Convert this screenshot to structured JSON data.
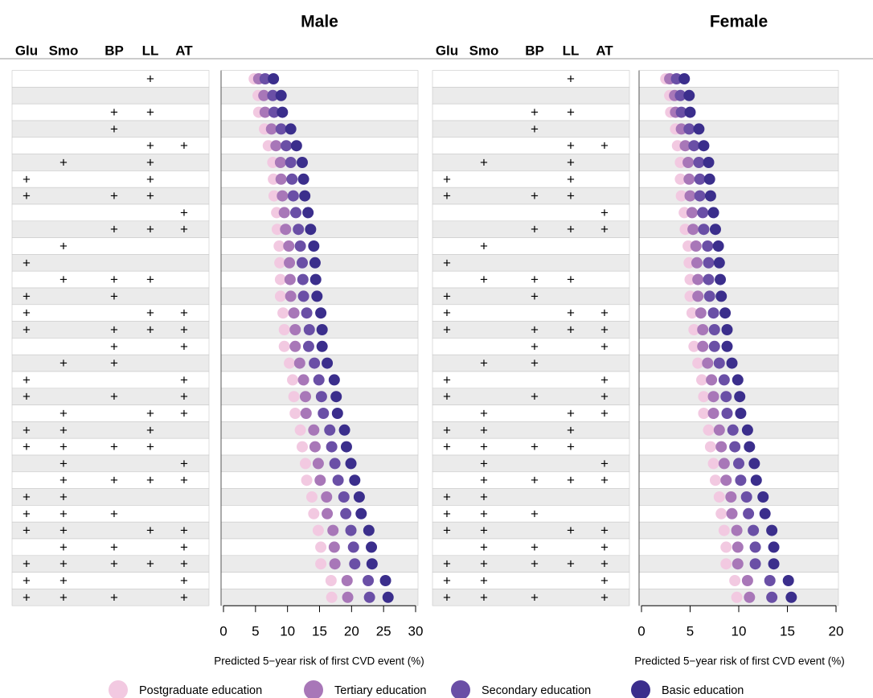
{
  "chart_data": [
    {
      "type": "dot",
      "title": "Male",
      "x_label": "Predicted 5−year risk of first CVD event (%)",
      "factor_columns": [
        "Glu",
        "Smo",
        "BP",
        "LL",
        "AT"
      ],
      "factors": [
        [
          null,
          null,
          null,
          "+",
          null
        ],
        [
          null,
          null,
          null,
          null,
          null
        ],
        [
          null,
          null,
          "+",
          "+",
          null
        ],
        [
          null,
          null,
          "+",
          null,
          null
        ],
        [
          null,
          null,
          null,
          "+",
          "+"
        ],
        [
          null,
          "+",
          null,
          "+",
          null
        ],
        [
          "+",
          null,
          null,
          "+",
          null
        ],
        [
          "+",
          null,
          "+",
          "+",
          null
        ],
        [
          null,
          null,
          null,
          null,
          "+"
        ],
        [
          null,
          null,
          "+",
          "+",
          "+"
        ],
        [
          null,
          "+",
          null,
          null,
          null
        ],
        [
          "+",
          null,
          null,
          null,
          null
        ],
        [
          null,
          "+",
          "+",
          "+",
          null
        ],
        [
          "+",
          null,
          "+",
          null,
          null
        ],
        [
          "+",
          null,
          null,
          "+",
          "+"
        ],
        [
          "+",
          null,
          "+",
          "+",
          "+"
        ],
        [
          null,
          null,
          "+",
          null,
          "+"
        ],
        [
          null,
          "+",
          "+",
          null,
          null
        ],
        [
          "+",
          null,
          null,
          null,
          "+"
        ],
        [
          "+",
          null,
          "+",
          null,
          "+"
        ],
        [
          null,
          "+",
          null,
          "+",
          "+"
        ],
        [
          "+",
          "+",
          null,
          "+",
          null
        ],
        [
          "+",
          "+",
          "+",
          "+",
          null
        ],
        [
          null,
          "+",
          null,
          null,
          "+"
        ],
        [
          null,
          "+",
          "+",
          "+",
          "+"
        ],
        [
          "+",
          "+",
          null,
          null,
          null
        ],
        [
          "+",
          "+",
          "+",
          null,
          null
        ],
        [
          "+",
          "+",
          null,
          "+",
          "+"
        ],
        [
          null,
          "+",
          "+",
          null,
          "+"
        ],
        [
          "+",
          "+",
          "+",
          "+",
          "+"
        ],
        [
          "+",
          "+",
          null,
          null,
          "+"
        ],
        [
          "+",
          "+",
          "+",
          null,
          "+"
        ]
      ],
      "series": [
        {
          "name": "Postgraduate education",
          "color": "#f2c9e1",
          "values": [
            4.8,
            5.4,
            5.5,
            6.4,
            7.0,
            7.7,
            7.8,
            7.9,
            8.3,
            8.4,
            8.7,
            8.8,
            8.9,
            8.9,
            9.3,
            9.5,
            9.5,
            10.3,
            10.8,
            11.0,
            11.2,
            12.0,
            12.3,
            12.8,
            13.0,
            13.8,
            14.1,
            14.8,
            15.2,
            15.2,
            16.8,
            16.9
          ]
        },
        {
          "name": "Tertiary education",
          "color": "#a877b8",
          "values": [
            5.5,
            6.3,
            6.5,
            7.5,
            8.2,
            8.9,
            9.0,
            9.2,
            9.5,
            9.7,
            10.2,
            10.3,
            10.4,
            10.5,
            11.0,
            11.2,
            11.2,
            11.9,
            12.5,
            12.8,
            12.9,
            14.1,
            14.3,
            14.8,
            15.1,
            16.1,
            16.2,
            17.1,
            17.3,
            17.4,
            19.3,
            19.4
          ]
        },
        {
          "name": "Secondary education",
          "color": "#6a4fa6",
          "values": [
            6.5,
            7.7,
            7.9,
            9.0,
            9.8,
            10.5,
            10.7,
            10.9,
            11.3,
            11.7,
            12.0,
            12.3,
            12.4,
            12.5,
            13.0,
            13.4,
            13.3,
            14.2,
            14.9,
            15.3,
            15.6,
            16.6,
            16.9,
            17.4,
            17.9,
            18.8,
            19.1,
            19.9,
            20.3,
            20.5,
            22.6,
            22.8
          ]
        },
        {
          "name": "Basic education",
          "color": "#3b2e8c",
          "values": [
            7.8,
            9.0,
            9.2,
            10.5,
            11.4,
            12.3,
            12.5,
            12.7,
            13.2,
            13.6,
            14.1,
            14.3,
            14.4,
            14.6,
            15.2,
            15.4,
            15.4,
            16.2,
            17.3,
            17.6,
            17.8,
            18.9,
            19.2,
            19.9,
            20.5,
            21.2,
            21.5,
            22.7,
            23.1,
            23.2,
            25.3,
            25.7
          ]
        }
      ],
      "xlim": [
        0,
        30
      ],
      "xticks": [
        0,
        5,
        10,
        15,
        20,
        25,
        30
      ]
    },
    {
      "type": "dot",
      "title": "Female",
      "x_label": "Predicted 5−year risk of first CVD event (%)",
      "factor_columns": [
        "Glu",
        "Smo",
        "BP",
        "LL",
        "AT"
      ],
      "factors": [
        [
          null,
          null,
          null,
          "+",
          null
        ],
        [
          null,
          null,
          null,
          null,
          null
        ],
        [
          null,
          null,
          "+",
          "+",
          null
        ],
        [
          null,
          null,
          "+",
          null,
          null
        ],
        [
          null,
          null,
          null,
          "+",
          "+"
        ],
        [
          null,
          "+",
          null,
          "+",
          null
        ],
        [
          "+",
          null,
          null,
          "+",
          null
        ],
        [
          "+",
          null,
          "+",
          "+",
          null
        ],
        [
          null,
          null,
          null,
          null,
          "+"
        ],
        [
          null,
          null,
          "+",
          "+",
          "+"
        ],
        [
          null,
          "+",
          null,
          null,
          null
        ],
        [
          "+",
          null,
          null,
          null,
          null
        ],
        [
          null,
          "+",
          "+",
          "+",
          null
        ],
        [
          "+",
          null,
          "+",
          null,
          null
        ],
        [
          "+",
          null,
          null,
          "+",
          "+"
        ],
        [
          "+",
          null,
          "+",
          "+",
          "+"
        ],
        [
          null,
          null,
          "+",
          null,
          "+"
        ],
        [
          null,
          "+",
          "+",
          null,
          null
        ],
        [
          "+",
          null,
          null,
          null,
          "+"
        ],
        [
          "+",
          null,
          "+",
          null,
          "+"
        ],
        [
          null,
          "+",
          null,
          "+",
          "+"
        ],
        [
          "+",
          "+",
          null,
          "+",
          null
        ],
        [
          "+",
          "+",
          "+",
          "+",
          null
        ],
        [
          null,
          "+",
          null,
          null,
          "+"
        ],
        [
          null,
          "+",
          "+",
          "+",
          "+"
        ],
        [
          "+",
          "+",
          null,
          null,
          null
        ],
        [
          "+",
          "+",
          "+",
          null,
          null
        ],
        [
          "+",
          "+",
          null,
          "+",
          "+"
        ],
        [
          null,
          "+",
          "+",
          null,
          "+"
        ],
        [
          "+",
          "+",
          "+",
          "+",
          "+"
        ],
        [
          "+",
          "+",
          null,
          null,
          "+"
        ],
        [
          "+",
          "+",
          "+",
          null,
          "+"
        ]
      ],
      "series": [
        {
          "color": "#f2c9e1",
          "values": [
            2.5,
            2.9,
            3.0,
            3.5,
            3.7,
            4.0,
            4.0,
            4.1,
            4.4,
            4.5,
            4.8,
            4.9,
            5.0,
            5.0,
            5.2,
            5.4,
            5.4,
            5.8,
            6.2,
            6.4,
            6.4,
            6.9,
            7.1,
            7.4,
            7.6,
            8.0,
            8.2,
            8.5,
            8.7,
            8.7,
            9.6,
            9.8
          ]
        },
        {
          "color": "#a877b8",
          "values": [
            2.9,
            3.4,
            3.5,
            4.1,
            4.5,
            4.8,
            4.9,
            5.0,
            5.2,
            5.3,
            5.6,
            5.7,
            5.8,
            5.8,
            6.1,
            6.3,
            6.3,
            6.8,
            7.2,
            7.4,
            7.4,
            8.0,
            8.2,
            8.5,
            8.7,
            9.2,
            9.3,
            9.8,
            9.9,
            9.9,
            10.9,
            11.1
          ]
        },
        {
          "color": "#6a4fa6",
          "values": [
            3.6,
            4.0,
            4.1,
            4.9,
            5.4,
            5.9,
            6.0,
            6.0,
            6.3,
            6.4,
            6.8,
            6.9,
            6.9,
            7.0,
            7.4,
            7.5,
            7.5,
            8.0,
            8.5,
            8.7,
            8.8,
            9.4,
            9.6,
            10.0,
            10.2,
            10.8,
            11.0,
            11.5,
            11.7,
            11.7,
            13.2,
            13.4
          ]
        },
        {
          "color": "#3b2e8c",
          "values": [
            4.4,
            4.9,
            5.0,
            5.9,
            6.4,
            6.9,
            7.0,
            7.1,
            7.4,
            7.6,
            7.9,
            8.0,
            8.1,
            8.2,
            8.6,
            8.8,
            8.8,
            9.3,
            9.9,
            10.1,
            10.2,
            10.9,
            11.1,
            11.6,
            11.8,
            12.5,
            12.7,
            13.4,
            13.6,
            13.6,
            15.1,
            15.4
          ]
        }
      ],
      "xlim": [
        0,
        20
      ],
      "xticks": [
        0,
        5,
        10,
        15,
        20
      ]
    }
  ]
}
